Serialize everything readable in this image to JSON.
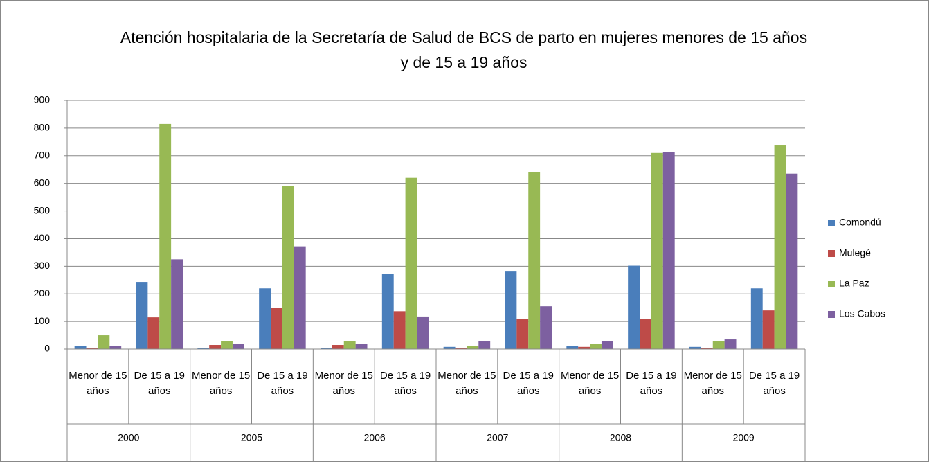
{
  "chart_data": {
    "type": "bar",
    "title": "Atención hospitalaria de la Secretaría de Salud de BCS de parto en mujeres menores de 15 años y de 15 a 19 años",
    "categories": [
      "Menor de 15 años",
      "De 15 a 19 años",
      "Menor de 15 años",
      "De 15 a 19 años",
      "Menor de 15 años",
      "De 15 a 19 años",
      "Menor de 15 años",
      "De 15 a 19 años",
      "Menor de 15 años",
      "De 15 a 19 años",
      "Menor de 15 años",
      "De 15 a 19 años"
    ],
    "groups": [
      "2000",
      "2005",
      "2006",
      "2007",
      "2008",
      "2009"
    ],
    "series": [
      {
        "name": "Comondú",
        "color": "#4a7ebb",
        "values": [
          12,
          243,
          5,
          220,
          5,
          272,
          8,
          283,
          12,
          302,
          8,
          220
        ]
      },
      {
        "name": "Mulegé",
        "color": "#be4b48",
        "values": [
          5,
          115,
          15,
          148,
          15,
          137,
          5,
          110,
          8,
          110,
          5,
          140
        ]
      },
      {
        "name": "La Paz",
        "color": "#98b954",
        "values": [
          50,
          815,
          30,
          590,
          30,
          620,
          12,
          640,
          20,
          710,
          28,
          737
        ]
      },
      {
        "name": "Los Cabos",
        "color": "#7d60a0",
        "values": [
          12,
          325,
          20,
          372,
          20,
          118,
          28,
          155,
          28,
          713,
          35,
          635
        ]
      }
    ],
    "ylim": [
      0,
      900
    ],
    "yticks": [
      0,
      100,
      200,
      300,
      400,
      500,
      600,
      700,
      800,
      900
    ],
    "grid": true,
    "legend": "right"
  }
}
